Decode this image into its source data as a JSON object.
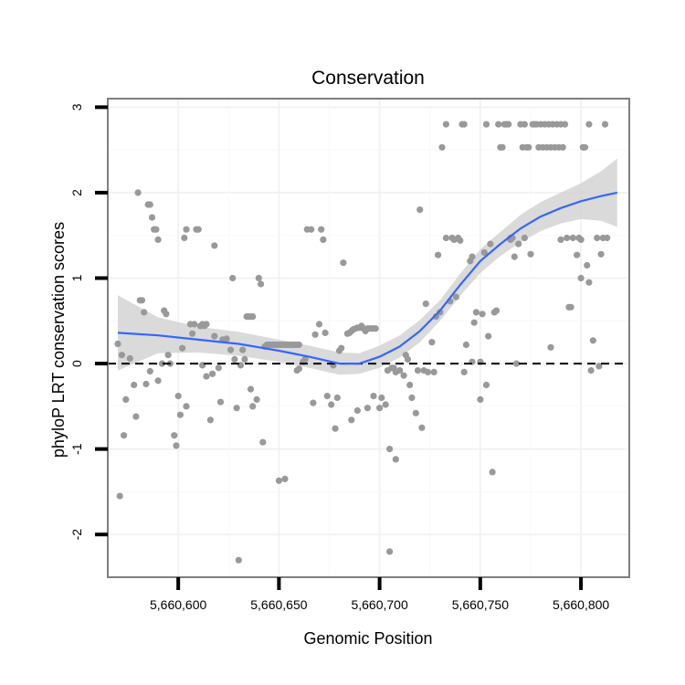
{
  "chart_data": {
    "type": "scatter",
    "title": "Conservation",
    "xlabel": "Genomic Position",
    "ylabel": "phyloP LRT conservation scores",
    "xlim": [
      5660565,
      5660824
    ],
    "ylim": [
      -2.5,
      3.1
    ],
    "x_ticks": [
      5660600,
      5660650,
      5660700,
      5660750,
      5660800
    ],
    "x_tick_labels": [
      "5,660,600",
      "5,660,650",
      "5,660,700",
      "5,660,750",
      "5,660,800"
    ],
    "y_ticks": [
      -2,
      -1,
      0,
      1,
      2,
      3
    ],
    "y_tick_labels": [
      "-2",
      "-1",
      "0",
      "1",
      "2",
      "3"
    ],
    "reference_line": {
      "y": 0,
      "style": "dashed"
    },
    "colors": {
      "points": "#999999",
      "smooth": "#3366FF",
      "band": "#d3d3d3",
      "grid": "#f2f2f2",
      "frame": "#7f7f7f"
    },
    "series": [
      {
        "name": "scores",
        "kind": "points",
        "points": [
          [
            5660571,
            -1.55
          ],
          [
            5660573,
            -0.84
          ],
          [
            5660570,
            0.23
          ],
          [
            5660572,
            0.1
          ],
          [
            5660574,
            -0.42
          ],
          [
            5660576,
            0.06
          ],
          [
            5660578,
            -0.25
          ],
          [
            5660579,
            -0.62
          ],
          [
            5660580,
            2.0
          ],
          [
            5660581,
            0.74
          ],
          [
            5660582,
            0.74
          ],
          [
            5660583,
            0.6
          ],
          [
            5660585,
            1.86
          ],
          [
            5660586,
            1.86
          ],
          [
            5660587,
            1.71
          ],
          [
            5660588,
            1.57
          ],
          [
            5660589,
            1.57
          ],
          [
            5660590,
            1.45
          ],
          [
            5660584,
            -0.24
          ],
          [
            5660586,
            -0.09
          ],
          [
            5660590,
            -0.2
          ],
          [
            5660592,
            0.0
          ],
          [
            5660593,
            0.62
          ],
          [
            5660594,
            0.58
          ],
          [
            5660595,
            0.1
          ],
          [
            5660596,
            0.0
          ],
          [
            5660598,
            -0.84
          ],
          [
            5660599,
            -0.96
          ],
          [
            5660600,
            -0.38
          ],
          [
            5660601,
            -0.6
          ],
          [
            5660602,
            0.18
          ],
          [
            5660603,
            1.47
          ],
          [
            5660604,
            1.57
          ],
          [
            5660604,
            -0.5
          ],
          [
            5660606,
            0.46
          ],
          [
            5660607,
            0.35
          ],
          [
            5660608,
            0.46
          ],
          [
            5660609,
            1.57
          ],
          [
            5660610,
            1.57
          ],
          [
            5660611,
            0.44
          ],
          [
            5660612,
            0.46
          ],
          [
            5660613,
            0.44
          ],
          [
            5660614,
            0.46
          ],
          [
            5660612,
            -0.02
          ],
          [
            5660614,
            -0.15
          ],
          [
            5660616,
            -0.66
          ],
          [
            5660617,
            -0.12
          ],
          [
            5660618,
            1.38
          ],
          [
            5660618,
            0.32
          ],
          [
            5660620,
            -0.05
          ],
          [
            5660621,
            -0.45
          ],
          [
            5660622,
            0.28
          ],
          [
            5660624,
            0.29
          ],
          [
            5660626,
            0.16
          ],
          [
            5660627,
            1.0
          ],
          [
            5660628,
            0.05
          ],
          [
            5660629,
            -0.52
          ],
          [
            5660630,
            -2.3
          ],
          [
            5660631,
            -0.02
          ],
          [
            5660632,
            0.16
          ],
          [
            5660633,
            0.05
          ],
          [
            5660634,
            0.55
          ],
          [
            5660635,
            0.55
          ],
          [
            5660636,
            0.55
          ],
          [
            5660637,
            0.55
          ],
          [
            5660636,
            -0.3
          ],
          [
            5660637,
            -0.5
          ],
          [
            5660639,
            -0.42
          ],
          [
            5660640,
            1.0
          ],
          [
            5660641,
            0.93
          ],
          [
            5660643,
            0.2
          ],
          [
            5660644,
            0.22
          ],
          [
            5660645,
            0.22
          ],
          [
            5660646,
            0.22
          ],
          [
            5660647,
            0.22
          ],
          [
            5660648,
            0.22
          ],
          [
            5660649,
            0.22
          ],
          [
            5660650,
            0.22
          ],
          [
            5660651,
            0.22
          ],
          [
            5660652,
            0.22
          ],
          [
            5660653,
            0.22
          ],
          [
            5660654,
            0.22
          ],
          [
            5660655,
            0.22
          ],
          [
            5660656,
            0.22
          ],
          [
            5660657,
            0.22
          ],
          [
            5660658,
            0.22
          ],
          [
            5660659,
            0.22
          ],
          [
            5660660,
            0.22
          ],
          [
            5660642,
            -0.92
          ],
          [
            5660650,
            -1.37
          ],
          [
            5660653,
            -1.35
          ],
          [
            5660659,
            -0.08
          ],
          [
            5660660,
            -0.06
          ],
          [
            5660662,
            0.02
          ],
          [
            5660663,
            0.05
          ],
          [
            5660664,
            1.57
          ],
          [
            5660666,
            1.57
          ],
          [
            5660667,
            -0.46
          ],
          [
            5660668,
            0.34
          ],
          [
            5660670,
            0.46
          ],
          [
            5660671,
            1.57
          ],
          [
            5660672,
            1.45
          ],
          [
            5660673,
            0.36
          ],
          [
            5660674,
            -0.38
          ],
          [
            5660676,
            -0.48
          ],
          [
            5660677,
            -0.02
          ],
          [
            5660678,
            -0.76
          ],
          [
            5660679,
            -0.4
          ],
          [
            5660680,
            0.15
          ],
          [
            5660681,
            0.18
          ],
          [
            5660682,
            1.18
          ],
          [
            5660684,
            0.35
          ],
          [
            5660685,
            0.36
          ],
          [
            5660686,
            0.38
          ],
          [
            5660687,
            0.4
          ],
          [
            5660688,
            0.41
          ],
          [
            5660689,
            0.42
          ],
          [
            5660690,
            0.42
          ],
          [
            5660691,
            0.44
          ],
          [
            5660692,
            0.41
          ],
          [
            5660693,
            0.38
          ],
          [
            5660694,
            0.41
          ],
          [
            5660695,
            0.41
          ],
          [
            5660696,
            0.41
          ],
          [
            5660697,
            0.41
          ],
          [
            5660698,
            0.41
          ],
          [
            5660686,
            -0.66
          ],
          [
            5660689,
            -0.55
          ],
          [
            5660694,
            -0.52
          ],
          [
            5660697,
            -0.38
          ],
          [
            5660700,
            -0.52
          ],
          [
            5660701,
            -0.4
          ],
          [
            5660703,
            -0.48
          ],
          [
            5660704,
            -0.08
          ],
          [
            5660705,
            -1.0
          ],
          [
            5660706,
            -0.05
          ],
          [
            5660707,
            -0.05
          ],
          [
            5660708,
            -0.1
          ],
          [
            5660710,
            -0.08
          ],
          [
            5660712,
            -0.14
          ],
          [
            5660713,
            0.1
          ],
          [
            5660714,
            0.05
          ],
          [
            5660705,
            -2.2
          ],
          [
            5660708,
            -1.12
          ],
          [
            5660715,
            -0.25
          ],
          [
            5660716,
            -0.4
          ],
          [
            5660718,
            -0.58
          ],
          [
            5660719,
            -0.08
          ],
          [
            5660720,
            1.8
          ],
          [
            5660721,
            -0.75
          ],
          [
            5660722,
            -0.08
          ],
          [
            5660723,
            0.7
          ],
          [
            5660724,
            -0.1
          ],
          [
            5660726,
            0.25
          ],
          [
            5660727,
            -0.1
          ],
          [
            5660728,
            0.55
          ],
          [
            5660729,
            1.27
          ],
          [
            5660730,
            0.6
          ],
          [
            5660731,
            2.53
          ],
          [
            5660733,
            2.8
          ],
          [
            5660733,
            1.47
          ],
          [
            5660735,
            0.73
          ],
          [
            5660736,
            1.47
          ],
          [
            5660737,
            1.45
          ],
          [
            5660738,
            0.78
          ],
          [
            5660739,
            1.47
          ],
          [
            5660740,
            1.44
          ],
          [
            5660741,
            2.8
          ],
          [
            5660742,
            2.8
          ],
          [
            5660742,
            -0.1
          ],
          [
            5660743,
            0.22
          ],
          [
            5660745,
            1.2
          ],
          [
            5660746,
            1.25
          ],
          [
            5660746,
            0.02
          ],
          [
            5660747,
            0.48
          ],
          [
            5660748,
            0.6
          ],
          [
            5660750,
            0.02
          ],
          [
            5660750,
            -0.42
          ],
          [
            5660751,
            0.58
          ],
          [
            5660752,
            1.3
          ],
          [
            5660753,
            2.8
          ],
          [
            5660753,
            -0.25
          ],
          [
            5660754,
            0.32
          ],
          [
            5660755,
            1.4
          ],
          [
            5660756,
            -1.27
          ],
          [
            5660757,
            0.6
          ],
          [
            5660758,
            0.62
          ],
          [
            5660759,
            2.8
          ],
          [
            5660760,
            2.53
          ],
          [
            5660761,
            2.53
          ],
          [
            5660762,
            2.8
          ],
          [
            5660763,
            2.8
          ],
          [
            5660764,
            2.8
          ],
          [
            5660765,
            1.47
          ],
          [
            5660766,
            1.47
          ],
          [
            5660767,
            1.25
          ],
          [
            5660768,
            0.0
          ],
          [
            5660769,
            1.4
          ],
          [
            5660770,
            2.8
          ],
          [
            5660771,
            2.53
          ],
          [
            5660772,
            2.8
          ],
          [
            5660772,
            1.47
          ],
          [
            5660773,
            2.53
          ],
          [
            5660774,
            2.53
          ],
          [
            5660775,
            1.28
          ],
          [
            5660776,
            2.8
          ],
          [
            5660777,
            2.8
          ],
          [
            5660778,
            2.8
          ],
          [
            5660779,
            2.53
          ],
          [
            5660780,
            2.8
          ],
          [
            5660781,
            2.53
          ],
          [
            5660782,
            2.8
          ],
          [
            5660783,
            2.53
          ],
          [
            5660784,
            2.8
          ],
          [
            5660785,
            2.53
          ],
          [
            5660786,
            2.8
          ],
          [
            5660787,
            2.53
          ],
          [
            5660788,
            2.8
          ],
          [
            5660789,
            2.53
          ],
          [
            5660790,
            2.8
          ],
          [
            5660791,
            2.53
          ],
          [
            5660792,
            2.8
          ],
          [
            5660793,
            1.47
          ],
          [
            5660794,
            0.66
          ],
          [
            5660795,
            0.66
          ],
          [
            5660796,
            1.47
          ],
          [
            5660798,
            1.27
          ],
          [
            5660799,
            1.47
          ],
          [
            5660800,
            1.45
          ],
          [
            5660801,
            2.53
          ],
          [
            5660802,
            2.53
          ],
          [
            5660803,
            1.15
          ],
          [
            5660804,
            2.8
          ],
          [
            5660805,
            -0.08
          ],
          [
            5660806,
            0.27
          ],
          [
            5660808,
            1.47
          ],
          [
            5660809,
            -0.03
          ],
          [
            5660810,
            1.28
          ],
          [
            5660811,
            1.47
          ],
          [
            5660812,
            2.8
          ],
          [
            5660813,
            1.47
          ],
          [
            5660765,
            1.45
          ],
          [
            5660785,
            0.19
          ],
          [
            5660790,
            1.45
          ],
          [
            5660800,
            1.0
          ],
          [
            5660804,
            0.95
          ]
        ]
      },
      {
        "name": "loess fit",
        "kind": "smooth",
        "x": [
          5660570,
          5660590,
          5660610,
          5660630,
          5660650,
          5660665,
          5660680,
          5660690,
          5660700,
          5660710,
          5660720,
          5660730,
          5660740,
          5660750,
          5660760,
          5660770,
          5660780,
          5660790,
          5660800,
          5660810,
          5660818
        ],
        "y": [
          0.36,
          0.33,
          0.28,
          0.23,
          0.15,
          0.08,
          0.0,
          0.0,
          0.08,
          0.2,
          0.38,
          0.62,
          0.92,
          1.2,
          1.4,
          1.58,
          1.72,
          1.82,
          1.9,
          1.96,
          2.0
        ],
        "lower": [
          -0.08,
          0.12,
          0.13,
          0.09,
          0.02,
          -0.05,
          -0.13,
          -0.12,
          -0.05,
          0.07,
          0.25,
          0.5,
          0.79,
          1.06,
          1.26,
          1.42,
          1.55,
          1.64,
          1.69,
          1.67,
          1.6
        ],
        "upper": [
          0.8,
          0.54,
          0.43,
          0.37,
          0.28,
          0.21,
          0.13,
          0.12,
          0.21,
          0.33,
          0.51,
          0.74,
          1.05,
          1.34,
          1.54,
          1.74,
          1.89,
          2.0,
          2.11,
          2.25,
          2.4
        ]
      }
    ]
  }
}
